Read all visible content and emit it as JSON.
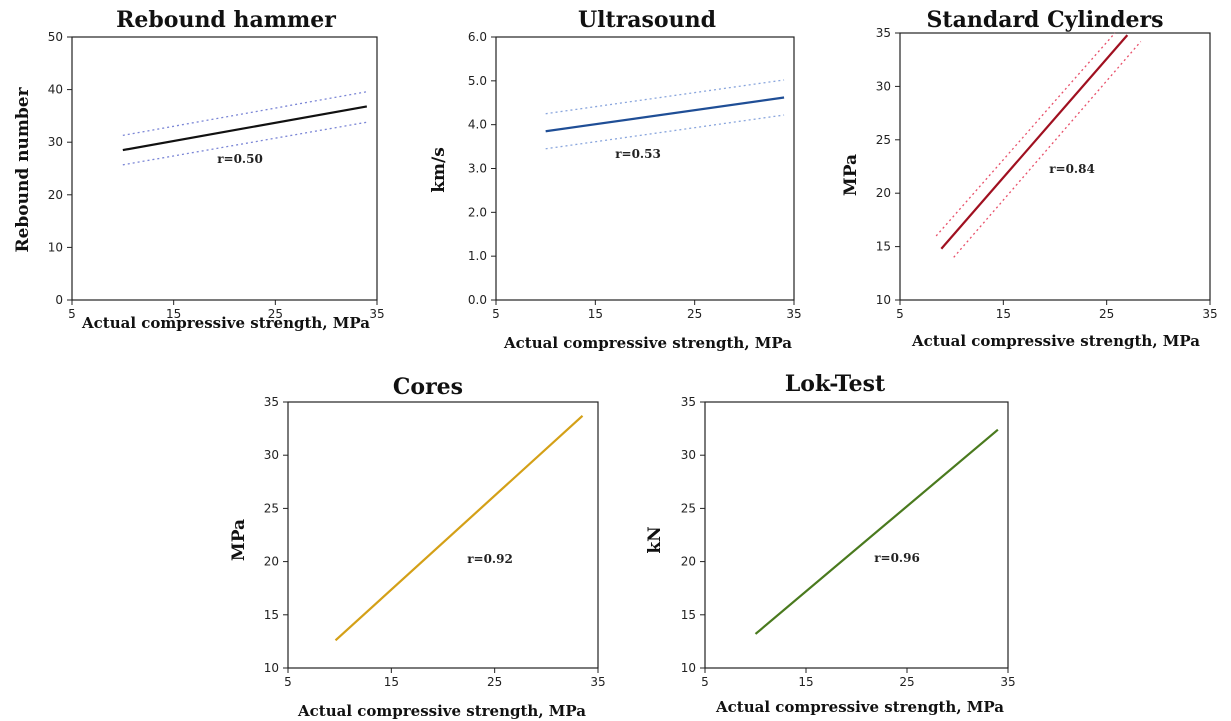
{
  "chart_data": [
    {
      "type": "line",
      "title": "Rebound hammer",
      "xlabel": "Actual compressive strength, MPa",
      "ylabel": "Rebound number",
      "xlim": [
        5,
        35
      ],
      "ylim": [
        0,
        50
      ],
      "xticks": [
        "5",
        "15",
        "25",
        "35"
      ],
      "yticks": [
        "0",
        "10",
        "20",
        "30",
        "40",
        "50"
      ],
      "annotation": "r=0.50",
      "color": "#111111",
      "band_color": "#7b86d6",
      "series": [
        {
          "x": [
            10,
            34
          ],
          "y": [
            28.5,
            36.8
          ]
        },
        {
          "x": [
            10,
            34
          ],
          "y": [
            31.3,
            39.6
          ],
          "style": "dotted"
        },
        {
          "x": [
            10,
            34
          ],
          "y": [
            25.7,
            33.8
          ],
          "style": "dotted"
        }
      ]
    },
    {
      "type": "line",
      "title": "Ultrasound",
      "xlabel": "Actual compressive strength, MPa",
      "ylabel": "km/s",
      "xlim": [
        5,
        35
      ],
      "ylim": [
        0,
        6
      ],
      "xticks": [
        "5",
        "15",
        "25",
        "35"
      ],
      "yticks": [
        "0.0",
        "1.0",
        "2.0",
        "3.0",
        "4.0",
        "5.0",
        "6.0"
      ],
      "annotation": "r=0.53",
      "color": "#1f4e96",
      "band_color": "#8aa6dd",
      "series": [
        {
          "x": [
            10,
            34
          ],
          "y": [
            3.85,
            4.62
          ]
        },
        {
          "x": [
            10,
            34
          ],
          "y": [
            4.25,
            5.02
          ],
          "style": "dotted"
        },
        {
          "x": [
            10,
            34
          ],
          "y": [
            3.45,
            4.22
          ],
          "style": "dotted"
        }
      ]
    },
    {
      "type": "line",
      "title": "Standard Cylinders",
      "xlabel": "Actual compressive strength, MPa",
      "ylabel": "MPa",
      "xlim": [
        5,
        35
      ],
      "ylim": [
        10,
        35
      ],
      "xticks": [
        "5",
        "15",
        "25",
        "35"
      ],
      "yticks": [
        "10",
        "15",
        "20",
        "25",
        "30",
        "35"
      ],
      "annotation": "r=0.84",
      "color": "#a01020",
      "band_color": "#e8506a",
      "series": [
        {
          "x": [
            9,
            27
          ],
          "y": [
            14.8,
            34.8
          ]
        },
        {
          "x": [
            8.5,
            25.8
          ],
          "y": [
            16.0,
            35.0
          ],
          "style": "dotted"
        },
        {
          "x": [
            10.2,
            28.3
          ],
          "y": [
            14.0,
            34.2
          ],
          "style": "dotted"
        }
      ]
    },
    {
      "type": "line",
      "title": "Cores",
      "xlabel": "Actual compressive strength, MPa",
      "ylabel": "MPa",
      "xlim": [
        5,
        35
      ],
      "ylim": [
        10,
        35
      ],
      "xticks": [
        "5",
        "15",
        "25",
        "35"
      ],
      "yticks": [
        "10",
        "15",
        "20",
        "25",
        "30",
        "35"
      ],
      "annotation": "r=0.92",
      "color": "#d4a017",
      "series": [
        {
          "x": [
            9.6,
            33.5
          ],
          "y": [
            12.6,
            33.7
          ]
        }
      ]
    },
    {
      "type": "line",
      "title": "Lok-Test",
      "xlabel": "Actual compressive strength, MPa",
      "ylabel": "kN",
      "xlim": [
        5,
        35
      ],
      "ylim": [
        10,
        35
      ],
      "xticks": [
        "5",
        "15",
        "25",
        "35"
      ],
      "yticks": [
        "10",
        "15",
        "20",
        "25",
        "30",
        "35"
      ],
      "annotation": "r=0.96",
      "color": "#4a7a1e",
      "series": [
        {
          "x": [
            10,
            34
          ],
          "y": [
            13.2,
            32.4
          ]
        }
      ]
    }
  ]
}
